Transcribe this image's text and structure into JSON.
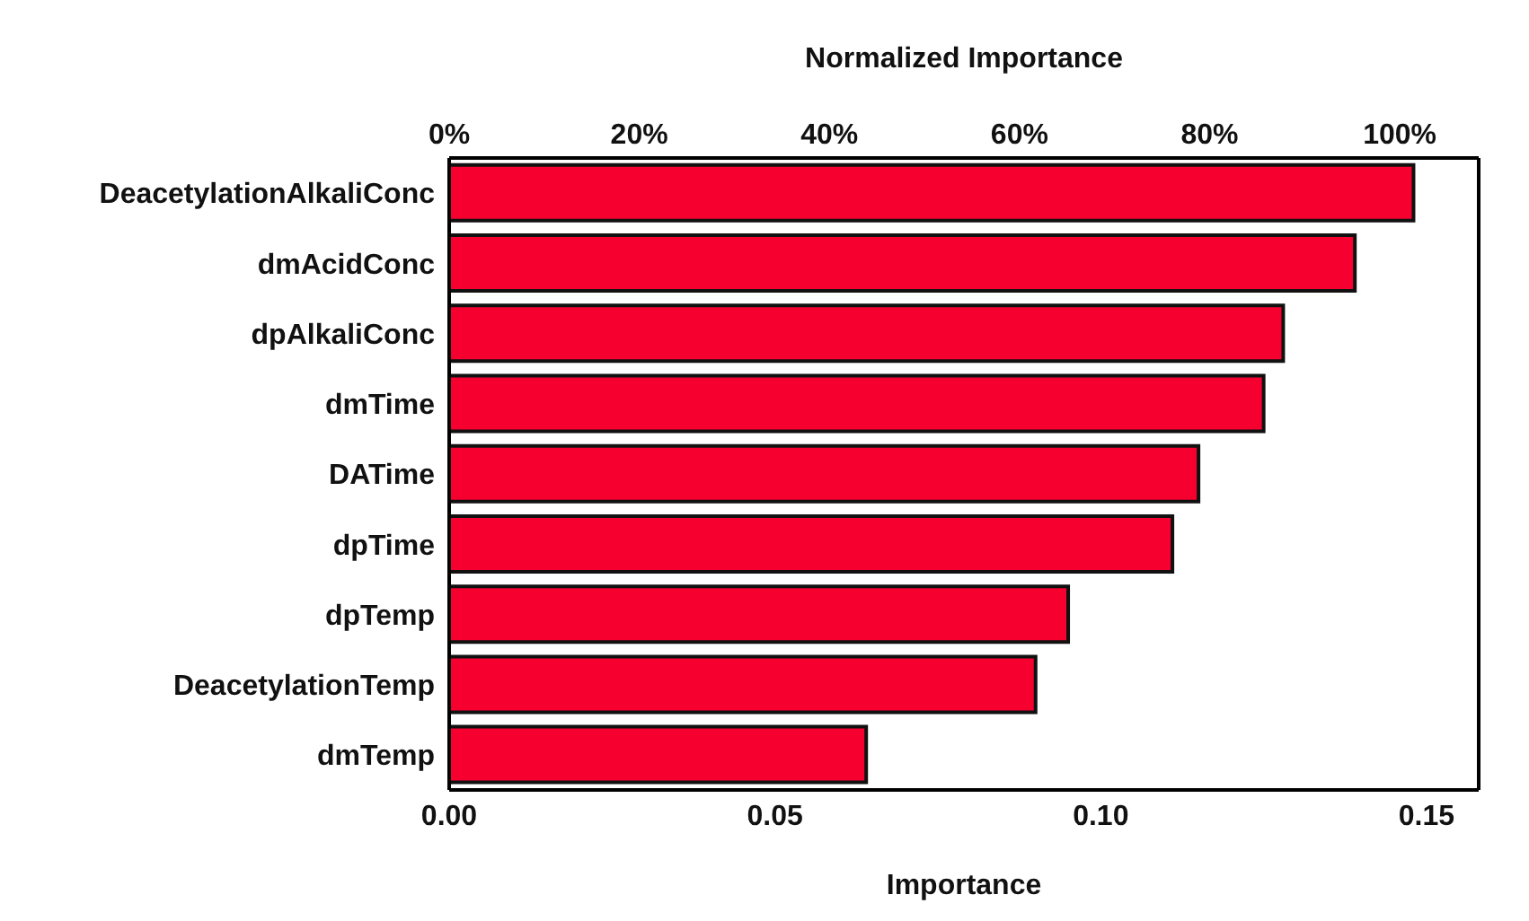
{
  "chart_data": {
    "type": "bar",
    "orientation": "horizontal",
    "xlabel": "Importance",
    "x2label": "Normalized Importance",
    "categories": [
      "DeacetylationAlkaliConc",
      "dmAcidConc",
      "dpAlkaliConc",
      "dmTime",
      "DATime",
      "dpTime",
      "dpTemp",
      "DeacetylationTemp",
      "dmTemp"
    ],
    "values": [
      0.148,
      0.139,
      0.128,
      0.125,
      0.115,
      0.111,
      0.095,
      0.09,
      0.064
    ],
    "color": "#f5002f",
    "xlim": [
      0,
      0.158
    ],
    "xticks": [
      {
        "value": 0,
        "label": "0.00"
      },
      0.05,
      {
        "value": 0.1,
        "label": "0.10"
      },
      0.15
    ],
    "x2lim": [
      0,
      108.3
    ],
    "x2ticks": [
      {
        "value": 0,
        "label": "0%"
      },
      {
        "value": 20,
        "label": "20%"
      },
      {
        "value": 40,
        "label": "40%"
      },
      {
        "value": 60,
        "label": "60%"
      },
      {
        "value": 80,
        "label": "80%"
      },
      {
        "value": 100,
        "label": "100%"
      }
    ]
  }
}
